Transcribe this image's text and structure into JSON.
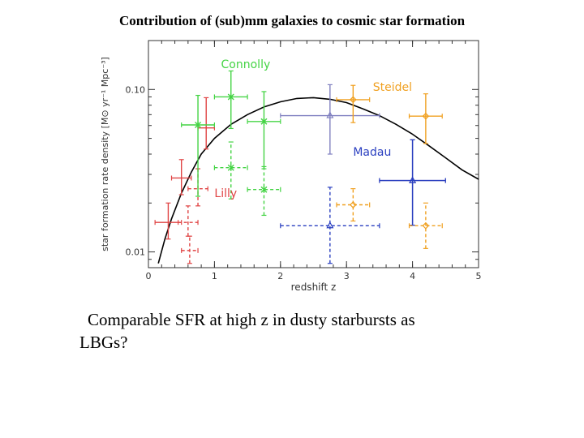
{
  "slide": {
    "title": "Contribution of (sub)mm galaxies to cosmic star formation",
    "caption_line1": "Comparable SFR at high z in dusty starbursts as",
    "caption_line2": "LBGs?"
  },
  "chart_data": {
    "type": "scatter",
    "xlabel": "redshift z",
    "ylabel": "star formation rate density [M⊙ yr⁻¹ Mpc⁻³]",
    "xlim": [
      0,
      5
    ],
    "ylim": [
      0.008,
      0.2
    ],
    "y_scale": "log",
    "x_ticks": [
      0,
      1,
      2,
      3,
      4,
      5
    ],
    "y_ticks": [
      {
        "value": 0.01,
        "label": "0.01"
      },
      {
        "value": 0.1,
        "label": "0.10"
      }
    ],
    "annotations": [
      {
        "text": "Connolly",
        "color": "#44d444",
        "x": 1.1,
        "y": 0.135
      },
      {
        "text": "Steidel",
        "color": "#f0a020",
        "x": 3.4,
        "y": 0.098
      },
      {
        "text": "Madau",
        "color": "#2a3fc0",
        "x": 3.1,
        "y": 0.039
      },
      {
        "text": "Lilly",
        "color": "#e04444",
        "x": 1.0,
        "y": 0.0218
      }
    ],
    "model_curve": {
      "color": "#000000",
      "x": [
        0.15,
        0.25,
        0.35,
        0.5,
        0.65,
        0.8,
        1.0,
        1.25,
        1.5,
        1.75,
        2.0,
        2.25,
        2.5,
        2.75,
        3.0,
        3.25,
        3.5,
        3.75,
        4.0,
        4.25,
        4.5,
        4.75,
        5.0
      ],
      "y": [
        0.0085,
        0.012,
        0.016,
        0.023,
        0.031,
        0.04,
        0.05,
        0.061,
        0.07,
        0.078,
        0.084,
        0.088,
        0.089,
        0.087,
        0.083,
        0.076,
        0.069,
        0.061,
        0.053,
        0.045,
        0.038,
        0.032,
        0.028
      ]
    },
    "series": [
      {
        "name": "Lilly",
        "color": "#e04444",
        "marker": "plus",
        "dashed": false,
        "points": [
          {
            "x": 0.3,
            "y": 0.0152,
            "xerr": [
              0.2,
              0.2
            ],
            "yerr": [
              0.012,
              0.02
            ]
          },
          {
            "x": 0.5,
            "y": 0.0285,
            "xerr": [
              0.15,
              0.15
            ],
            "yerr": [
              0.0225,
              0.037
            ]
          },
          {
            "x": 0.875,
            "y": 0.058,
            "xerr": [
              0.125,
              0.125
            ],
            "yerr": [
              0.043,
              0.089
            ]
          }
        ]
      },
      {
        "name": "Lilly",
        "color": "#e04444",
        "marker": "plus",
        "dashed": true,
        "points": [
          {
            "x": 0.625,
            "y": 0.0102,
            "xerr": [
              0.125,
              0.125
            ],
            "yerr": [
              0.0085,
              0.0125
            ]
          },
          {
            "x": 0.6,
            "y": 0.0152,
            "xerr": [
              0.15,
              0.15
            ],
            "yerr": [
              0.0125,
              0.0192
            ]
          },
          {
            "x": 0.75,
            "y": 0.0245,
            "xerr": [
              0.15,
              0.15
            ],
            "yerr": [
              0.0192,
              0.0325
            ]
          }
        ]
      },
      {
        "name": "Connolly",
        "color": "#44d444",
        "marker": "asterisk",
        "dashed": false,
        "points": [
          {
            "x": 0.75,
            "y": 0.0605,
            "xerr": [
              0.25,
              0.25
            ],
            "yerr": [
              0.022,
              0.092
            ]
          },
          {
            "x": 1.25,
            "y": 0.09,
            "xerr": [
              0.25,
              0.25
            ],
            "yerr": [
              0.0575,
              0.13
            ]
          },
          {
            "x": 1.75,
            "y": 0.0635,
            "xerr": [
              0.25,
              0.25
            ],
            "yerr": [
              0.0325,
              0.097
            ]
          }
        ]
      },
      {
        "name": "Connolly",
        "color": "#44d444",
        "marker": "asterisk",
        "dashed": true,
        "points": [
          {
            "x": 1.25,
            "y": 0.033,
            "xerr": [
              0.25,
              0.25
            ],
            "yerr": [
              0.0212,
              0.0475
            ]
          },
          {
            "x": 1.75,
            "y": 0.0242,
            "xerr": [
              0.25,
              0.25
            ],
            "yerr": [
              0.0168,
              0.0335
            ]
          }
        ]
      },
      {
        "name": "Madau",
        "color": "#8080c0",
        "marker": "triangle",
        "dashed": false,
        "points": [
          {
            "x": 2.75,
            "y": 0.069,
            "xerr": [
              0.75,
              0.75
            ],
            "yerr": [
              0.04,
              0.107
            ]
          },
          {
            "x": 4.0,
            "y": 0.0275,
            "xerr": [
              0.5,
              0.5
            ],
            "yerr": [
              0.0146,
              0.049
            ]
          }
        ]
      },
      {
        "name": "Madau",
        "color": "#2a3fc0",
        "marker": "triangle",
        "dashed": false,
        "points": [
          {
            "x": 4.0,
            "y": 0.0275,
            "xerr": [
              0.5,
              0.5
            ],
            "yerr": [
              0.0146,
              0.049
            ]
          }
        ]
      },
      {
        "name": "Madau",
        "color": "#2a3fc0",
        "marker": "triangle",
        "dashed": true,
        "points": [
          {
            "x": 2.75,
            "y": 0.0145,
            "xerr": [
              0.75,
              0.75
            ],
            "yerr": [
              0.0085,
              0.025
            ]
          }
        ]
      },
      {
        "name": "Steidel",
        "color": "#f0a020",
        "marker": "diamond",
        "dashed": false,
        "points": [
          {
            "x": 3.1,
            "y": 0.0865,
            "xerr": [
              0.25,
              0.25
            ],
            "yerr": [
              0.0625,
              0.106
            ]
          },
          {
            "x": 4.2,
            "y": 0.0685,
            "xerr": [
              0.25,
              0.25
            ],
            "yerr": [
              0.0465,
              0.094
            ]
          }
        ]
      },
      {
        "name": "Steidel",
        "color": "#f0a020",
        "marker": "diamond",
        "dashed": true,
        "points": [
          {
            "x": 3.1,
            "y": 0.0195,
            "xerr": [
              0.25,
              0.25
            ],
            "yerr": [
              0.0155,
              0.0245
            ]
          },
          {
            "x": 4.2,
            "y": 0.0145,
            "xerr": [
              0.25,
              0.25
            ],
            "yerr": [
              0.0105,
              0.02
            ]
          }
        ]
      }
    ]
  }
}
